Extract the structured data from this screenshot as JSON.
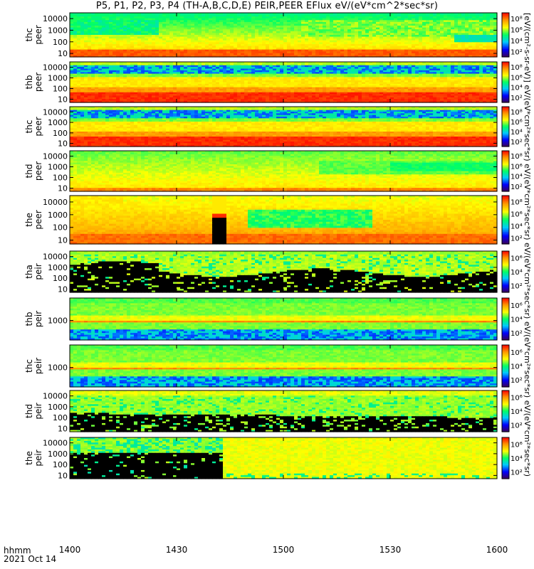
{
  "title": "P5, P1, P2, P3, P4 (TH-A,B,C,D,E) PEIR,PEER EFlux eV/(eV*cm^2*sec*sr)",
  "units_label": "[eV/(cm²-s-sr-eV)] eV/(eV*cm²*sec*sr) eV/(eV*cm²*sec*sr) eV/(eV*cm²*sec*sr) eV/(eV*cm²*sec*sr) eV/(eV*cm²*sec*sr)",
  "footer": {
    "time_label": "hhmm",
    "date_label": "2021 Oct 14"
  },
  "chart_data": {
    "type": "heatmap",
    "colormap": [
      "#3a005a",
      "#0000ff",
      "#00c8ff",
      "#00ff64",
      "#ffff00",
      "#ff9600",
      "#ff0000"
    ],
    "x_ticks": [
      "1400",
      "1430",
      "1500",
      "1530",
      "1600"
    ],
    "x_range_minutes": [
      0,
      120
    ],
    "panels": [
      {
        "label": [
          "thc",
          "peer"
        ],
        "y_ticks": [
          "10000",
          "1000",
          "100",
          "10"
        ],
        "colorbar_ticks": [
          "10⁸",
          "10⁶",
          "10⁴",
          "10²"
        ],
        "profile": "peer_a",
        "log_range": [
          0.7,
          4.5
        ]
      },
      {
        "label": [
          "thb",
          "peer"
        ],
        "y_ticks": [
          "10000",
          "1000",
          "100",
          "10"
        ],
        "colorbar_ticks": [
          "10⁸",
          "10⁶",
          "10⁴",
          "10²"
        ],
        "profile": "peer_b",
        "log_range": [
          0.7,
          4.5
        ]
      },
      {
        "label": [
          "thc",
          "peer"
        ],
        "y_ticks": [
          "10000",
          "1000",
          "100",
          "10"
        ],
        "colorbar_ticks": [
          "10⁸",
          "10⁶",
          "10⁴",
          "10²"
        ],
        "profile": "peer_c",
        "log_range": [
          0.7,
          4.5
        ]
      },
      {
        "label": [
          "thd",
          "peer"
        ],
        "y_ticks": [
          "10000",
          "1000",
          "100",
          "10"
        ],
        "colorbar_ticks": [
          "10⁸",
          "10⁶",
          "10⁴",
          "10²"
        ],
        "profile": "peer_d",
        "log_range": [
          0.7,
          4.5
        ]
      },
      {
        "label": [
          "the",
          "peer"
        ],
        "y_ticks": [
          "10000",
          "1000",
          "100",
          "10"
        ],
        "colorbar_ticks": [
          "10⁸",
          "10⁶",
          "10⁴",
          "10²"
        ],
        "profile": "peer_e",
        "log_range": [
          0.7,
          4.5
        ]
      },
      {
        "label": [
          "tha",
          "peir"
        ],
        "y_ticks": [
          "10000",
          "1000",
          "100",
          "10"
        ],
        "colorbar_ticks": [
          "10⁶",
          "10⁴",
          "10²"
        ],
        "profile": "peir_a",
        "log_range": [
          0.7,
          4.5
        ]
      },
      {
        "label": [
          "thb",
          "peir"
        ],
        "y_ticks": [
          "1000"
        ],
        "colorbar_ticks": [
          "10⁶",
          "10⁴",
          "10²"
        ],
        "profile": "peir_b",
        "log_range": [
          1.7,
          4.5
        ]
      },
      {
        "label": [
          "thc",
          "peir"
        ],
        "y_ticks": [
          "1000"
        ],
        "colorbar_ticks": [
          "10⁶",
          "10⁴",
          "10²"
        ],
        "profile": "peir_c",
        "log_range": [
          1.7,
          4.5
        ]
      },
      {
        "label": [
          "thd",
          "peir"
        ],
        "y_ticks": [
          "10000",
          "1000",
          "100",
          "10"
        ],
        "colorbar_ticks": [
          "10⁶",
          "10⁴",
          "10²"
        ],
        "profile": "peir_d",
        "log_range": [
          0.7,
          4.5
        ]
      },
      {
        "label": [
          "the",
          "peir"
        ],
        "y_ticks": [
          "10000",
          "1000",
          "100",
          "10"
        ],
        "colorbar_ticks": [
          "10⁶",
          "10⁴",
          "10²"
        ],
        "profile": "peir_e",
        "log_range": [
          0.7,
          4.5
        ]
      }
    ]
  }
}
